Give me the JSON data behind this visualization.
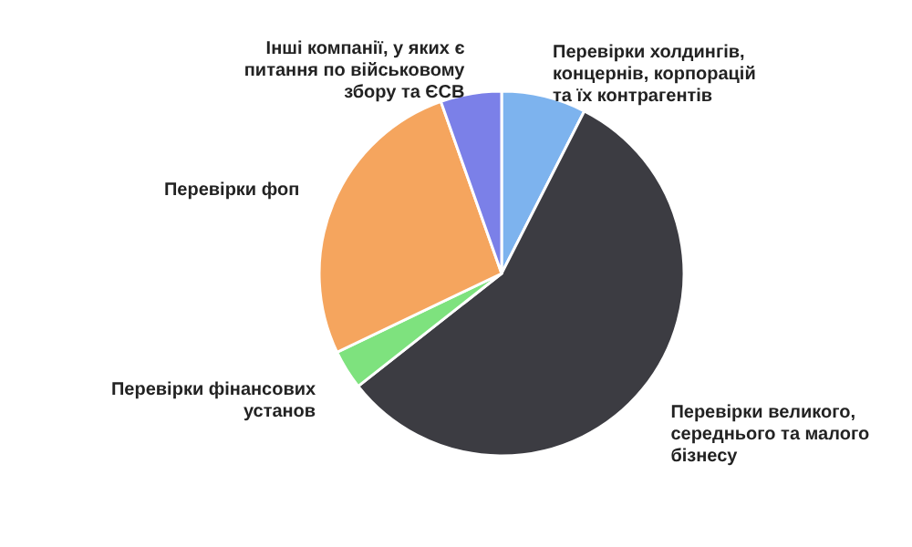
{
  "chart_data": {
    "type": "pie",
    "categories": [
      "Перевірки холдингів, концернів, корпорацій та їх контрагентів",
      "Перевірки великого, середнього та малого бізнесу",
      "Перевірки фінансових установ",
      "Перевірки фоп",
      "Інші компанії, у яких є питання по військовому збору та ЄСВ"
    ],
    "values": [
      7.5,
      56.9,
      3.5,
      26.7,
      5.4
    ],
    "colors": [
      "#7db3ee",
      "#3c3c42",
      "#7ee27e",
      "#f5a55e",
      "#7b80e8"
    ]
  }
}
